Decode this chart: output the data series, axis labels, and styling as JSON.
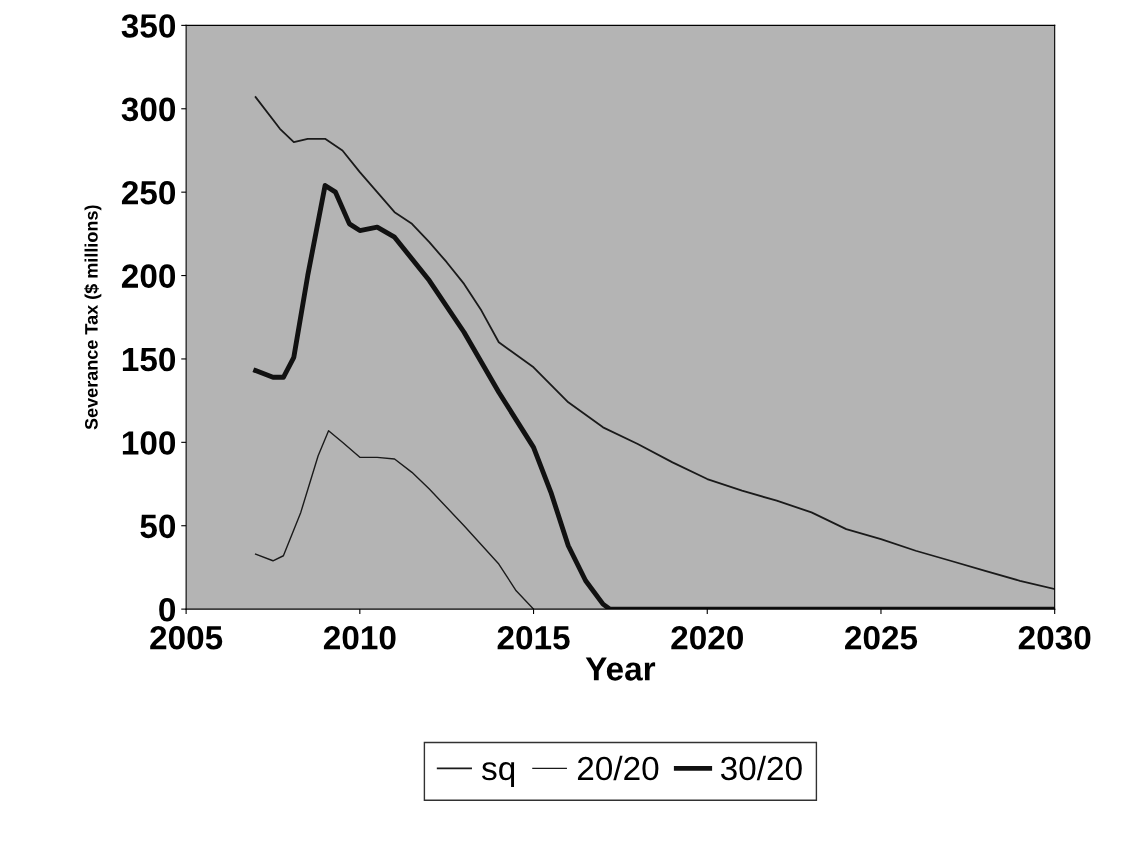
{
  "chart_data": {
    "type": "line",
    "xlabel": "Year",
    "ylabel": "Severance Tax ($ millions)",
    "xlim": [
      2005,
      2030
    ],
    "xticks": [
      2005,
      2010,
      2015,
      2020,
      2025,
      2030
    ],
    "ylim": [
      0,
      350
    ],
    "yticks": [
      0,
      50,
      100,
      150,
      200,
      250,
      300,
      350
    ],
    "legend": "bottom",
    "marker": "none",
    "line_style": "solid",
    "series": [
      {
        "name": "sq",
        "color": "#1a1a1a",
        "x": [
          2007,
          2007.7,
          2008.1,
          2008.5,
          2009,
          2009.5,
          2010,
          2010.5,
          2011,
          2011.5,
          2012,
          2012.5,
          2013,
          2013.5,
          2014,
          2015,
          2016,
          2017,
          2018,
          2019,
          2020,
          2021,
          2022,
          2023,
          2024,
          2025,
          2026,
          2027,
          2028,
          2029,
          2030
        ],
        "values": [
          307,
          288,
          280,
          282,
          282,
          275,
          262,
          250,
          238,
          231,
          220,
          208,
          195,
          179,
          160,
          145,
          124,
          109,
          99,
          88,
          78,
          71,
          65,
          58,
          48,
          42,
          35,
          29,
          23,
          17,
          12
        ]
      },
      {
        "name": "20/20",
        "color": "#1a1a1a",
        "x": [
          2007,
          2007.5,
          2007.8,
          2008.3,
          2008.8,
          2009.1,
          2009.5,
          2010,
          2010.5,
          2011,
          2011.5,
          2012,
          2013,
          2014,
          2014.5,
          2015
        ],
        "values": [
          33,
          29,
          32,
          58,
          92,
          107,
          100,
          91,
          91,
          90,
          82,
          72,
          50,
          27,
          11,
          0
        ]
      },
      {
        "name": "30/20",
        "color": "#111111",
        "x": [
          2007,
          2007.5,
          2007.8,
          2008.1,
          2008.5,
          2009,
          2009.3,
          2009.7,
          2010,
          2010.5,
          2011,
          2012,
          2013,
          2014,
          2015,
          2015.5,
          2016,
          2016.5,
          2017,
          2017.2,
          2020,
          2025,
          2030
        ],
        "values": [
          143,
          139,
          139,
          151,
          200,
          254,
          250,
          231,
          227,
          229,
          223,
          197,
          166,
          130,
          97,
          70,
          38,
          17,
          3,
          0,
          0,
          0,
          0
        ]
      }
    ]
  }
}
